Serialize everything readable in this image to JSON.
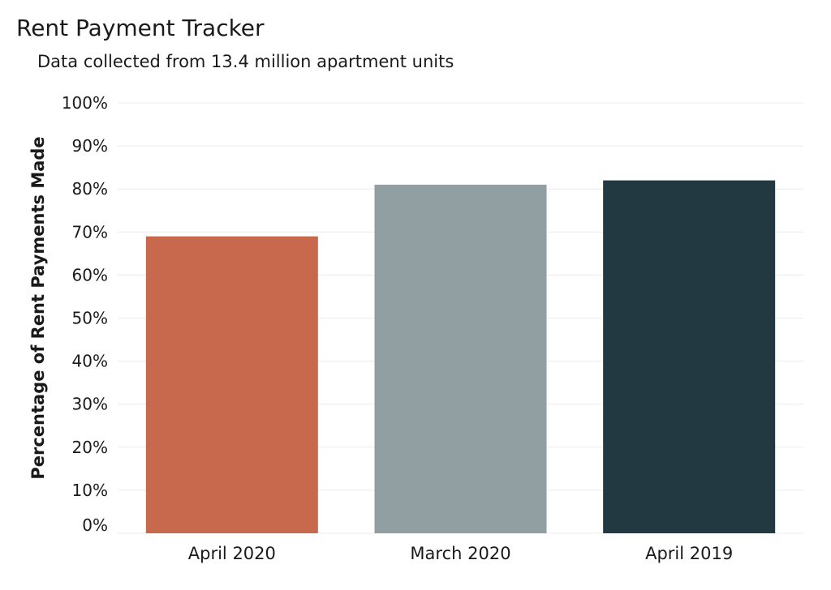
{
  "chart_data": {
    "type": "bar",
    "title": "Rent Payment Tracker",
    "subtitle": "Data collected from 13.4 million apartment units",
    "xlabel": "",
    "ylabel": "Percentage of Rent Payments Made",
    "categories": [
      "April 2020",
      "March 2020",
      "April 2019"
    ],
    "values": [
      69,
      81,
      82
    ],
    "colors": [
      "#c8694d",
      "#919ea2",
      "#233942"
    ],
    "ylim": [
      0,
      100
    ],
    "yticks": [
      0,
      10,
      20,
      30,
      40,
      50,
      60,
      70,
      80,
      90,
      100
    ],
    "ytick_labels": [
      "0%",
      "10%",
      "20%",
      "30%",
      "40%",
      "50%",
      "60%",
      "70%",
      "80%",
      "90%",
      "100%"
    ],
    "grid": true,
    "legend": "none"
  }
}
